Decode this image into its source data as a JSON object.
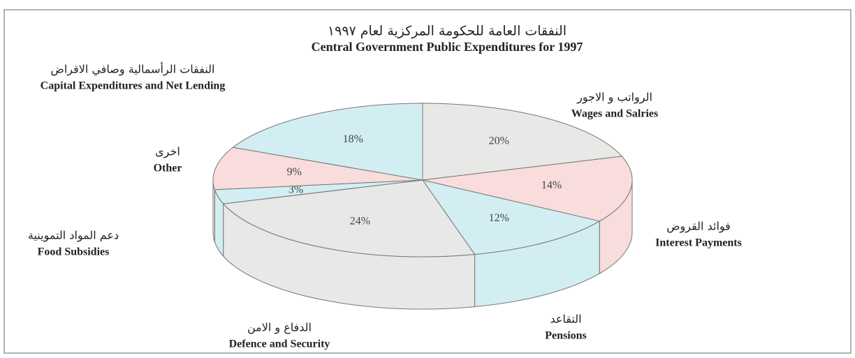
{
  "chart_data": {
    "type": "pie3d",
    "title": "النفقات العامة للحكومة المركزية لعام ١٩٩٧",
    "subtitle": "Central Government Public Expenditures for 1997",
    "categories": [
      "Wages and Salries",
      "Interest Payments",
      "Pensions",
      "Defence and Security",
      "Food Subsidies",
      "Other",
      "Capital Expenditures and Net Lending"
    ],
    "categories_ar": [
      "الرواتب و الاجور",
      "فوائد القروض",
      "التقاعد",
      "الدفاع و الامن",
      "دعم المواد التموينية",
      "اخرى",
      "النفقات الرأسمالية وصافي الاقراض"
    ],
    "values": [
      20,
      14,
      12,
      24,
      3,
      9,
      18
    ],
    "value_labels": [
      "20%",
      "14%",
      "12%",
      "24%",
      "3%",
      "9%",
      "18%"
    ],
    "colors": [
      "#e8e8e6",
      "#f8dddc",
      "#d3eef2",
      "#e8e8e6",
      "#d3eef2",
      "#f8dddc",
      "#d3eef2"
    ]
  }
}
